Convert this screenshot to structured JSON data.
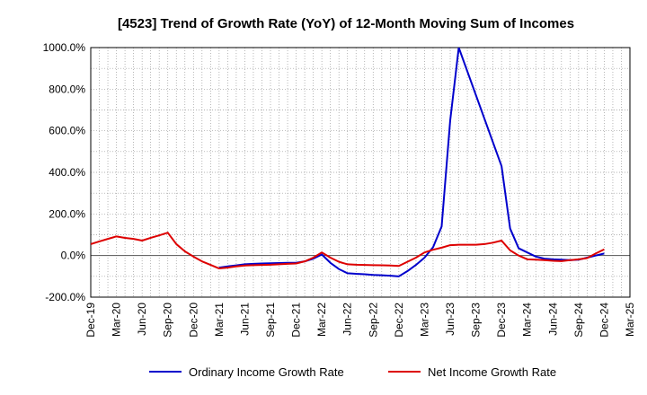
{
  "chart_data": {
    "type": "line",
    "title": "[4523]  Trend of Growth Rate (YoY) of 12-Month Moving Sum of Incomes",
    "xlabel": "",
    "ylabel": "",
    "ylim": [
      -200,
      1000
    ],
    "xlim": [
      "Dec-19",
      "Mar-25"
    ],
    "grid": true,
    "legend_position": "bottom",
    "x_tick_labels": [
      "Dec-19",
      "Mar-20",
      "Jun-20",
      "Sep-20",
      "Dec-20",
      "Mar-21",
      "Jun-21",
      "Sep-21",
      "Dec-21",
      "Mar-22",
      "Jun-22",
      "Sep-22",
      "Dec-22",
      "Mar-23",
      "Jun-23",
      "Sep-23",
      "Dec-23",
      "Mar-24",
      "Jun-24",
      "Sep-24",
      "Dec-24",
      "Mar-25"
    ],
    "y_ticks": [
      -200,
      0,
      200,
      400,
      600,
      800,
      1000
    ],
    "y_tick_labels": [
      "-200.0%",
      "0.0%",
      "200.0%",
      "400.0%",
      "600.0%",
      "800.0%",
      "1000.0%"
    ],
    "series": [
      {
        "name": "Ordinary Income Growth Rate",
        "color": "#0000cc",
        "points": [
          [
            "Mar-21",
            -58
          ],
          [
            "Apr-21",
            -52
          ],
          [
            "May-21",
            -47
          ],
          [
            "Jun-21",
            -42
          ],
          [
            "Jul-21",
            -40
          ],
          [
            "Aug-21",
            -38
          ],
          [
            "Sep-21",
            -37
          ],
          [
            "Oct-21",
            -36
          ],
          [
            "Nov-21",
            -35
          ],
          [
            "Dec-21",
            -35
          ],
          [
            "Jan-22",
            -28
          ],
          [
            "Feb-22",
            -15
          ],
          [
            "Mar-22",
            5
          ],
          [
            "Apr-22",
            -35
          ],
          [
            "May-22",
            -65
          ],
          [
            "Jun-22",
            -85
          ],
          [
            "Jul-22",
            -88
          ],
          [
            "Aug-22",
            -90
          ],
          [
            "Sep-22",
            -93
          ],
          [
            "Oct-22",
            -95
          ],
          [
            "Nov-22",
            -97
          ],
          [
            "Dec-22",
            -100
          ],
          [
            "Jan-23",
            -75
          ],
          [
            "Feb-23",
            -45
          ],
          [
            "Mar-23",
            -10
          ],
          [
            "Apr-23",
            40
          ],
          [
            "May-23",
            140
          ],
          [
            "Jun-23",
            650
          ],
          [
            "Jul-23",
            1000
          ],
          [
            "Dec-23",
            430
          ],
          [
            "Jan-24",
            130
          ],
          [
            "Feb-24",
            35
          ],
          [
            "Mar-24",
            15
          ],
          [
            "Apr-24",
            -5
          ],
          [
            "May-24",
            -15
          ],
          [
            "Jun-24",
            -18
          ],
          [
            "Jul-24",
            -20
          ],
          [
            "Aug-24",
            -22
          ],
          [
            "Sep-24",
            -20
          ],
          [
            "Oct-24",
            -10
          ],
          [
            "Nov-24",
            0
          ],
          [
            "Dec-24",
            10
          ]
        ]
      },
      {
        "name": "Net Income Growth Rate",
        "color": "#dd0000",
        "points": [
          [
            "Dec-19",
            55
          ],
          [
            "Jan-20",
            68
          ],
          [
            "Feb-20",
            80
          ],
          [
            "Mar-20",
            92
          ],
          [
            "Apr-20",
            85
          ],
          [
            "May-20",
            80
          ],
          [
            "Jun-20",
            72
          ],
          [
            "Jul-20",
            85
          ],
          [
            "Aug-20",
            97
          ],
          [
            "Sep-20",
            110
          ],
          [
            "Oct-20",
            55
          ],
          [
            "Nov-20",
            20
          ],
          [
            "Dec-20",
            -5
          ],
          [
            "Jan-21",
            -28
          ],
          [
            "Feb-21",
            -45
          ],
          [
            "Mar-21",
            -62
          ],
          [
            "Apr-21",
            -58
          ],
          [
            "May-21",
            -52
          ],
          [
            "Jun-21",
            -48
          ],
          [
            "Jul-21",
            -46
          ],
          [
            "Aug-21",
            -45
          ],
          [
            "Sep-21",
            -44
          ],
          [
            "Oct-21",
            -42
          ],
          [
            "Nov-21",
            -40
          ],
          [
            "Dec-21",
            -38
          ],
          [
            "Jan-22",
            -28
          ],
          [
            "Feb-22",
            -10
          ],
          [
            "Mar-22",
            15
          ],
          [
            "Apr-22",
            -10
          ],
          [
            "May-22",
            -30
          ],
          [
            "Jun-22",
            -42
          ],
          [
            "Jul-22",
            -44
          ],
          [
            "Aug-22",
            -45
          ],
          [
            "Sep-22",
            -46
          ],
          [
            "Oct-22",
            -47
          ],
          [
            "Nov-22",
            -48
          ],
          [
            "Dec-22",
            -50
          ],
          [
            "Jan-23",
            -30
          ],
          [
            "Feb-23",
            -10
          ],
          [
            "Mar-23",
            15
          ],
          [
            "Apr-23",
            28
          ],
          [
            "May-23",
            38
          ],
          [
            "Jun-23",
            50
          ],
          [
            "Jul-23",
            52
          ],
          [
            "Aug-23",
            52
          ],
          [
            "Sep-23",
            52
          ],
          [
            "Oct-23",
            55
          ],
          [
            "Nov-23",
            62
          ],
          [
            "Dec-23",
            72
          ],
          [
            "Jan-24",
            25
          ],
          [
            "Feb-24",
            0
          ],
          [
            "Mar-24",
            -18
          ],
          [
            "Apr-24",
            -20
          ],
          [
            "May-24",
            -22
          ],
          [
            "Jun-24",
            -25
          ],
          [
            "Jul-24",
            -27
          ],
          [
            "Aug-24",
            -22
          ],
          [
            "Sep-24",
            -18
          ],
          [
            "Oct-24",
            -12
          ],
          [
            "Nov-24",
            10
          ],
          [
            "Dec-24",
            30
          ]
        ]
      }
    ]
  }
}
